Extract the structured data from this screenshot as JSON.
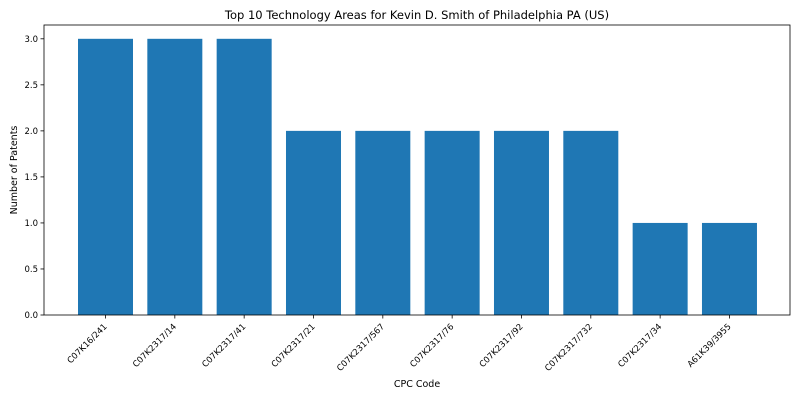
{
  "chart_data": {
    "type": "bar",
    "title": "Top 10 Technology Areas for Kevin D. Smith of Philadelphia PA (US)",
    "xlabel": "CPC Code",
    "ylabel": "Number of Patents",
    "categories": [
      "C07K16/241",
      "C07K2317/14",
      "C07K2317/41",
      "C07K2317/21",
      "C07K2317/567",
      "C07K2317/76",
      "C07K2317/92",
      "C07K2317/732",
      "C07K2317/34",
      "A61K39/3955"
    ],
    "values": [
      3,
      3,
      3,
      2,
      2,
      2,
      2,
      2,
      1,
      1
    ],
    "ylim": [
      0,
      3.15
    ],
    "yticks": [
      "0.0",
      "0.5",
      "1.0",
      "1.5",
      "2.0",
      "2.5",
      "3.0"
    ],
    "bar_color": "#1f77b4",
    "grid": false
  }
}
